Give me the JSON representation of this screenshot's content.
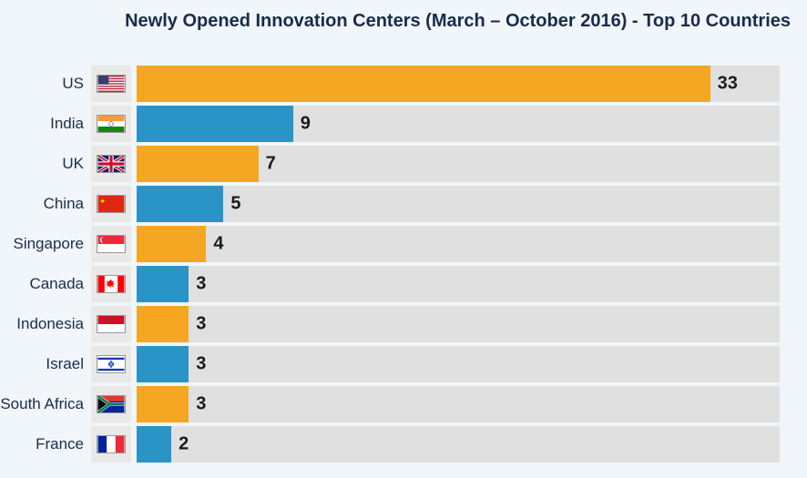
{
  "title": "Newly Opened Innovation Centers (March – October 2016) - Top 10 Countries",
  "title_fontsize": 20,
  "background_color": "#f0f6f9",
  "chart": {
    "type": "bar",
    "orientation": "horizontal",
    "max_value": 37,
    "bar_track_color": "#e0e0e0",
    "flag_cell_bg": "#e9e9e9",
    "label_color": "#1a2b4a",
    "label_fontsize": 17,
    "value_fontsize": 20,
    "value_fontweight": "bold",
    "value_color": "#1a1a1a",
    "alt_colors": [
      "#f5a623",
      "#2a94c7"
    ],
    "rows": [
      {
        "label": "US",
        "value": 33,
        "color": "#f5a623",
        "flag": "us"
      },
      {
        "label": "India",
        "value": 9,
        "color": "#2a94c7",
        "flag": "in"
      },
      {
        "label": "UK",
        "value": 7,
        "color": "#f5a623",
        "flag": "uk"
      },
      {
        "label": "China",
        "value": 5,
        "color": "#2a94c7",
        "flag": "cn"
      },
      {
        "label": "Singapore",
        "value": 4,
        "color": "#f5a623",
        "flag": "sg"
      },
      {
        "label": "Canada",
        "value": 3,
        "color": "#2a94c7",
        "flag": "ca"
      },
      {
        "label": "Indonesia",
        "value": 3,
        "color": "#f5a623",
        "flag": "id"
      },
      {
        "label": "Israel",
        "value": 3,
        "color": "#2a94c7",
        "flag": "il"
      },
      {
        "label": "South Africa",
        "value": 3,
        "color": "#f5a623",
        "flag": "za"
      },
      {
        "label": "France",
        "value": 2,
        "color": "#2a94c7",
        "flag": "fr"
      }
    ]
  }
}
